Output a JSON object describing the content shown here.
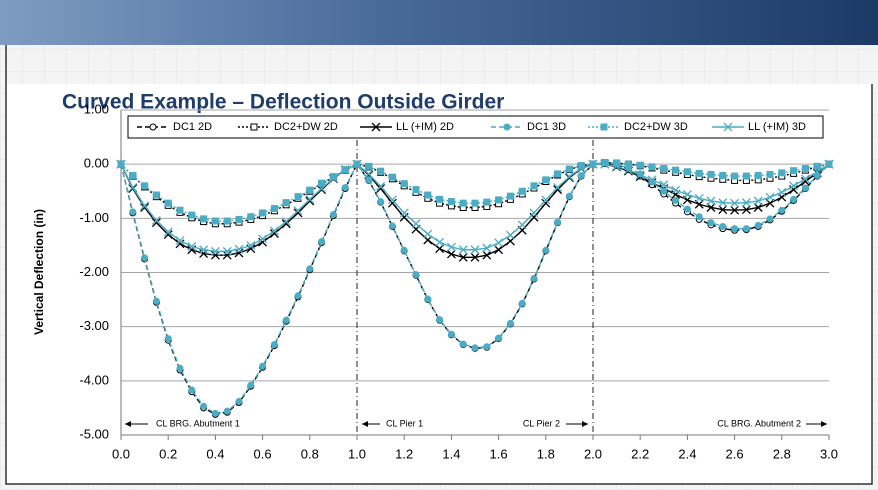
{
  "chart_data": {
    "type": "line",
    "title": "Curved Example – Deflection Outside Girder",
    "y_label": "Vertical Deflection (in)",
    "x": [
      0,
      0.05,
      0.1,
      0.15,
      0.2,
      0.25,
      0.3,
      0.35,
      0.4,
      0.45,
      0.5,
      0.55,
      0.6,
      0.65,
      0.7,
      0.75,
      0.8,
      0.85,
      0.9,
      0.95,
      1,
      1.05,
      1.1,
      1.15,
      1.2,
      1.25,
      1.3,
      1.35,
      1.4,
      1.45,
      1.5,
      1.55,
      1.6,
      1.65,
      1.7,
      1.75,
      1.8,
      1.85,
      1.9,
      1.95,
      2,
      2.05,
      2.1,
      2.15,
      2.2,
      2.25,
      2.3,
      2.35,
      2.4,
      2.45,
      2.5,
      2.55,
      2.6,
      2.65,
      2.7,
      2.75,
      2.8,
      2.85,
      2.9,
      2.95,
      3
    ],
    "series": [
      {
        "name": "DC1 2D",
        "color": "#000000",
        "dash": "dashed",
        "marker": "circle",
        "filled": false,
        "values": [
          0,
          -0.9,
          -1.75,
          -2.55,
          -3.25,
          -3.8,
          -4.2,
          -4.5,
          -4.62,
          -4.58,
          -4.4,
          -4.1,
          -3.75,
          -3.35,
          -2.9,
          -2.45,
          -1.95,
          -1.45,
          -0.95,
          -0.45,
          0,
          -0.3,
          -0.7,
          -1.15,
          -1.6,
          -2.05,
          -2.5,
          -2.88,
          -3.15,
          -3.33,
          -3.4,
          -3.38,
          -3.22,
          -2.95,
          -2.58,
          -2.12,
          -1.6,
          -1.08,
          -0.6,
          -0.22,
          0,
          0.01,
          -0.02,
          -0.1,
          -0.22,
          -0.38,
          -0.55,
          -0.72,
          -0.88,
          -1.02,
          -1.12,
          -1.19,
          -1.22,
          -1.21,
          -1.15,
          -1.03,
          -0.87,
          -0.67,
          -0.45,
          -0.22,
          0
        ]
      },
      {
        "name": "DC2+DW 2D",
        "color": "#000000",
        "dash": "dotted",
        "marker": "square",
        "filled": false,
        "values": [
          0,
          -0.22,
          -0.42,
          -0.6,
          -0.76,
          -0.89,
          -0.99,
          -1.06,
          -1.1,
          -1.1,
          -1.07,
          -1.02,
          -0.95,
          -0.86,
          -0.75,
          -0.63,
          -0.5,
          -0.37,
          -0.24,
          -0.11,
          0,
          -0.05,
          -0.15,
          -0.27,
          -0.4,
          -0.52,
          -0.63,
          -0.72,
          -0.77,
          -0.8,
          -0.8,
          -0.78,
          -0.73,
          -0.65,
          -0.55,
          -0.44,
          -0.32,
          -0.2,
          -0.1,
          -0.03,
          0,
          0.03,
          0.02,
          0,
          -0.03,
          -0.07,
          -0.11,
          -0.15,
          -0.19,
          -0.23,
          -0.26,
          -0.28,
          -0.3,
          -0.3,
          -0.29,
          -0.26,
          -0.22,
          -0.17,
          -0.11,
          -0.05,
          0
        ]
      },
      {
        "name": "LL (+IM) 2D",
        "color": "#000000",
        "dash": "solid",
        "marker": "x",
        "filled": false,
        "values": [
          0,
          -0.45,
          -0.8,
          -1.08,
          -1.3,
          -1.47,
          -1.58,
          -1.65,
          -1.68,
          -1.68,
          -1.64,
          -1.56,
          -1.44,
          -1.28,
          -1.1,
          -0.9,
          -0.68,
          -0.47,
          -0.27,
          -0.1,
          0,
          -0.2,
          -0.45,
          -0.72,
          -0.98,
          -1.2,
          -1.4,
          -1.56,
          -1.66,
          -1.72,
          -1.72,
          -1.68,
          -1.58,
          -1.42,
          -1.22,
          -0.98,
          -0.72,
          -0.47,
          -0.25,
          -0.08,
          0,
          0,
          -0.05,
          -0.13,
          -0.23,
          -0.34,
          -0.45,
          -0.56,
          -0.66,
          -0.74,
          -0.8,
          -0.84,
          -0.85,
          -0.84,
          -0.8,
          -0.72,
          -0.61,
          -0.47,
          -0.32,
          -0.16,
          0
        ]
      },
      {
        "name": "DC1 3D",
        "color": "#4bacc6",
        "dash": "dashed",
        "marker": "circle",
        "filled": true,
        "values": [
          0,
          -0.88,
          -1.73,
          -2.53,
          -3.22,
          -3.77,
          -4.17,
          -4.47,
          -4.6,
          -4.56,
          -4.38,
          -4.08,
          -3.73,
          -3.33,
          -2.88,
          -2.43,
          -1.93,
          -1.43,
          -0.93,
          -0.43,
          0,
          -0.29,
          -0.69,
          -1.14,
          -1.59,
          -2.04,
          -2.49,
          -2.87,
          -3.14,
          -3.32,
          -3.39,
          -3.37,
          -3.21,
          -2.94,
          -2.57,
          -2.11,
          -1.59,
          -1.07,
          -0.59,
          -0.21,
          0,
          0.02,
          0,
          -0.07,
          -0.18,
          -0.33,
          -0.5,
          -0.67,
          -0.83,
          -0.97,
          -1.08,
          -1.15,
          -1.19,
          -1.19,
          -1.13,
          -1.01,
          -0.85,
          -0.65,
          -0.44,
          -0.21,
          0
        ]
      },
      {
        "name": "DC2+DW 3D",
        "color": "#4bacc6",
        "dash": "dotted",
        "marker": "square",
        "filled": true,
        "values": [
          0,
          -0.21,
          -0.4,
          -0.57,
          -0.72,
          -0.85,
          -0.94,
          -1.01,
          -1.05,
          -1.05,
          -1.02,
          -0.97,
          -0.9,
          -0.82,
          -0.71,
          -0.6,
          -0.48,
          -0.35,
          -0.23,
          -0.1,
          0,
          -0.04,
          -0.13,
          -0.24,
          -0.36,
          -0.47,
          -0.57,
          -0.65,
          -0.69,
          -0.72,
          -0.72,
          -0.7,
          -0.66,
          -0.59,
          -0.5,
          -0.4,
          -0.29,
          -0.18,
          -0.09,
          -0.03,
          0,
          0.03,
          0.02,
          0,
          -0.02,
          -0.05,
          -0.08,
          -0.11,
          -0.14,
          -0.17,
          -0.19,
          -0.21,
          -0.22,
          -0.22,
          -0.21,
          -0.19,
          -0.16,
          -0.12,
          -0.08,
          -0.04,
          0
        ]
      },
      {
        "name": "LL (+IM) 3D",
        "color": "#4bacc6",
        "dash": "solid",
        "marker": "x",
        "filled": false,
        "values": [
          0,
          -0.43,
          -0.77,
          -1.04,
          -1.25,
          -1.41,
          -1.52,
          -1.58,
          -1.61,
          -1.61,
          -1.57,
          -1.5,
          -1.38,
          -1.23,
          -1.06,
          -0.86,
          -0.65,
          -0.45,
          -0.26,
          -0.1,
          0,
          -0.18,
          -0.41,
          -0.66,
          -0.9,
          -1.1,
          -1.29,
          -1.44,
          -1.53,
          -1.58,
          -1.58,
          -1.55,
          -1.45,
          -1.31,
          -1.12,
          -0.9,
          -0.66,
          -0.43,
          -0.23,
          -0.07,
          0,
          0,
          -0.04,
          -0.11,
          -0.2,
          -0.29,
          -0.38,
          -0.48,
          -0.56,
          -0.63,
          -0.68,
          -0.71,
          -0.72,
          -0.71,
          -0.68,
          -0.61,
          -0.52,
          -0.4,
          -0.27,
          -0.14,
          0
        ]
      }
    ],
    "xlim": [
      0,
      3
    ],
    "ylim": [
      -5,
      1
    ],
    "xticks": [
      {
        "value": 0,
        "label": "0.0"
      },
      {
        "value": 0.2,
        "label": "0.2"
      },
      {
        "value": 0.4,
        "label": "0.4"
      },
      {
        "value": 0.6,
        "label": "0.6"
      },
      {
        "value": 0.8,
        "label": "0.8"
      },
      {
        "value": 1,
        "label": "1.0"
      },
      {
        "value": 1.2,
        "label": "1.2"
      },
      {
        "value": 1.4,
        "label": "1.4"
      },
      {
        "value": 1.6,
        "label": "1.6"
      },
      {
        "value": 1.8,
        "label": "1.8"
      },
      {
        "value": 2,
        "label": "2.0"
      },
      {
        "value": 2.2,
        "label": "2.2"
      },
      {
        "value": 2.4,
        "label": "2.4"
      },
      {
        "value": 2.6,
        "label": "2.6"
      },
      {
        "value": 2.8,
        "label": "2.8"
      },
      {
        "value": 3,
        "label": "3.0"
      }
    ],
    "yticks": [
      {
        "value": 1,
        "label": "1.00"
      },
      {
        "value": 0,
        "label": "0.00"
      },
      {
        "value": -1,
        "label": "-1.00"
      },
      {
        "value": -2,
        "label": "-2.00"
      },
      {
        "value": -3,
        "label": "-3.00"
      },
      {
        "value": -4,
        "label": "-4.00"
      },
      {
        "value": -5,
        "label": "-5.00"
      }
    ],
    "vlines": [
      1,
      2
    ],
    "annotations": [
      "CL  BRG. Abutment 1",
      "CL Pier 1",
      "CL Pier 2",
      "CL  BRG. Abutment 2"
    ],
    "grid": true,
    "legend": "top"
  }
}
